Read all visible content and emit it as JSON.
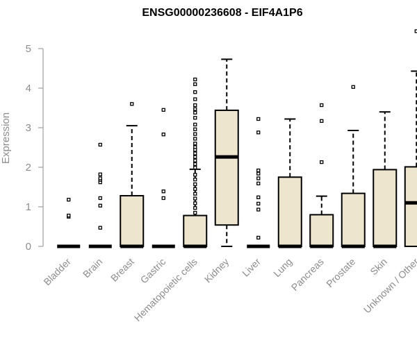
{
  "chart_data": {
    "type": "box",
    "title": "ENSG00000236608 - EIF4A1P6",
    "ylabel": "Expression",
    "xlabel": "",
    "ylim": [
      0,
      5
    ],
    "yticks": [
      0,
      1,
      2,
      3,
      4,
      5
    ],
    "categories": [
      "Bladder",
      "Brain",
      "Breast",
      "Gastric",
      "Hematopoietic cells",
      "Kidney",
      "Liver",
      "Lung",
      "Pancreas",
      "Prostate",
      "Skin",
      "Unknown / Other"
    ],
    "boxes": [
      {
        "category": "Bladder",
        "whisker_low": 0,
        "q1": 0,
        "median": 0,
        "q3": 0,
        "whisker_high": 0,
        "outliers": [
          0.75,
          0.78,
          1.18
        ]
      },
      {
        "category": "Brain",
        "whisker_low": 0,
        "q1": 0,
        "median": 0,
        "q3": 0,
        "whisker_high": 0,
        "outliers": [
          0.47,
          1.03,
          1.22,
          1.62,
          1.68,
          1.72,
          1.82,
          2.57
        ]
      },
      {
        "category": "Breast",
        "whisker_low": 0,
        "q1": 0,
        "median": 0,
        "q3": 1.28,
        "whisker_high": 3.05,
        "outliers": [
          3.6
        ]
      },
      {
        "category": "Gastric",
        "whisker_low": 0,
        "q1": 0,
        "median": 0,
        "q3": 0,
        "whisker_high": 0,
        "outliers": [
          1.22,
          1.39,
          2.83,
          3.45
        ]
      },
      {
        "category": "Hematopoietic cells",
        "whisker_low": 0,
        "q1": 0,
        "median": 0,
        "q3": 0.78,
        "whisker_high": 1.95,
        "outliers": [
          0.85,
          0.97,
          1.09,
          1.21,
          1.33,
          1.45,
          1.57,
          1.69,
          1.81,
          1.99,
          2.08,
          2.17,
          2.26,
          2.35,
          2.44,
          2.51,
          2.6,
          2.72,
          2.84,
          2.96,
          3.08,
          3.25,
          3.38,
          3.47,
          3.57,
          3.72,
          3.9,
          4.1,
          4.22
        ]
      },
      {
        "category": "Kidney",
        "whisker_low": 0,
        "q1": 0.54,
        "median": 2.26,
        "q3": 3.44,
        "whisker_high": 4.73,
        "outliers": []
      },
      {
        "category": "Liver",
        "whisker_low": 0,
        "q1": 0,
        "median": 0,
        "q3": 0,
        "whisker_high": 0,
        "outliers": [
          0.22,
          0.93,
          1.08,
          1.24,
          1.59,
          1.72,
          1.84,
          1.92,
          2.88,
          3.22
        ]
      },
      {
        "category": "Lung",
        "whisker_low": 0,
        "q1": 0,
        "median": 0,
        "q3": 1.75,
        "whisker_high": 3.22,
        "outliers": []
      },
      {
        "category": "Pancreas",
        "whisker_low": 0,
        "q1": 0,
        "median": 0,
        "q3": 0.8,
        "whisker_high": 1.27,
        "outliers": [
          2.13,
          3.17,
          3.57
        ]
      },
      {
        "category": "Prostate",
        "whisker_low": 0,
        "q1": 0,
        "median": 0,
        "q3": 1.34,
        "whisker_high": 2.93,
        "outliers": [
          4.03
        ]
      },
      {
        "category": "Skin",
        "whisker_low": 0,
        "q1": 0,
        "median": 0,
        "q3": 1.94,
        "whisker_high": 3.4,
        "outliers": []
      },
      {
        "category": "Unknown / Other",
        "whisker_low": 0,
        "q1": 0,
        "median": 1.1,
        "q3": 2.01,
        "whisker_high": 4.43,
        "outliers": [
          5.44
        ]
      }
    ],
    "colors": {
      "box_fill": "#ede5cc",
      "stroke": "#000000",
      "axis": "#8c8c8c"
    },
    "grid": false,
    "legend": "none"
  }
}
